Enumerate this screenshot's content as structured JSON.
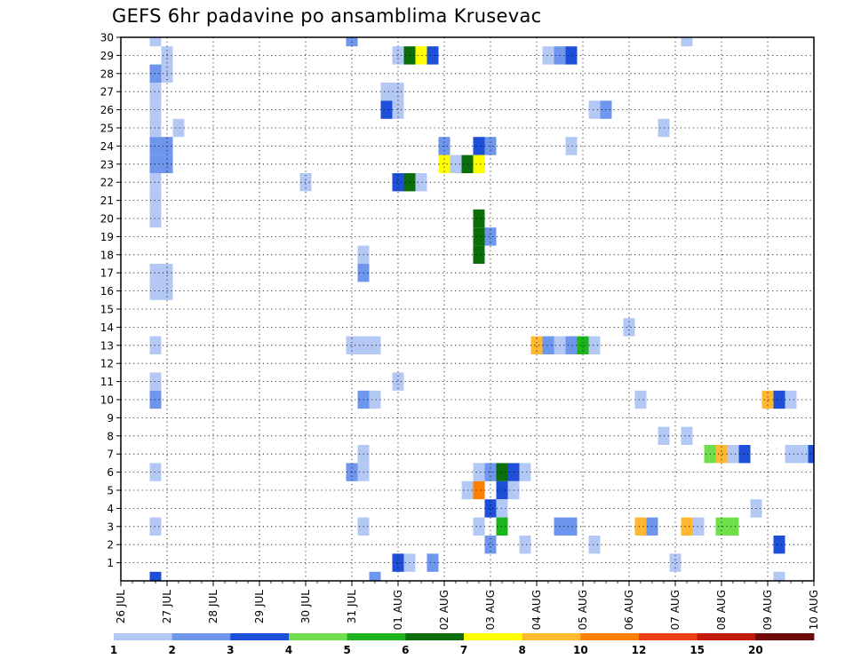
{
  "chart_data": {
    "type": "heatmap",
    "title": "GEFS 6hr padavine po ansamblima Krusevac",
    "xlabel": "",
    "ylabel": "",
    "x_ticks": [
      "26 JUL",
      "27 JUL",
      "28 JUL",
      "29 JUL",
      "30 JUL",
      "31 JUL",
      "01 AUG",
      "02 AUG",
      "03 AUG",
      "04 AUG",
      "05 AUG",
      "06 AUG",
      "07 AUG",
      "08 AUG",
      "09 AUG",
      "10 AUG"
    ],
    "y_ticks": [
      "1",
      "2",
      "3",
      "4",
      "5",
      "6",
      "7",
      "8",
      "9",
      "10",
      "11",
      "12",
      "13",
      "14",
      "15",
      "16",
      "17",
      "18",
      "19",
      "20",
      "21",
      "22",
      "23",
      "24",
      "25",
      "26",
      "27",
      "28",
      "29",
      "30"
    ],
    "x_range_steps": [
      0,
      60
    ],
    "x_step_hours": 6,
    "y_range": [
      0,
      30
    ],
    "grid": true,
    "colorbar": {
      "ticks": [
        "1",
        "2",
        "3",
        "4",
        "5",
        "6",
        "7",
        "8",
        "10",
        "12",
        "15",
        "20"
      ],
      "colors": [
        "#b4c8f5",
        "#6e96ec",
        "#1e4fd8",
        "#6fe04c",
        "#1cb51c",
        "#0b6e0b",
        "#ffff00",
        "#ffb830",
        "#ff7f00",
        "#e84010",
        "#c01a0a",
        "#700a0a"
      ]
    },
    "cells": [
      [
        3,
        30,
        1
      ],
      [
        3,
        28,
        2
      ],
      [
        3,
        27,
        1
      ],
      [
        3,
        26,
        1
      ],
      [
        3,
        25,
        1
      ],
      [
        3,
        24,
        2
      ],
      [
        3,
        23,
        2
      ],
      [
        3,
        22,
        1
      ],
      [
        3,
        21,
        1
      ],
      [
        3,
        20,
        1
      ],
      [
        3,
        17,
        1
      ],
      [
        3,
        16,
        1
      ],
      [
        3,
        13,
        1
      ],
      [
        3,
        11,
        1
      ],
      [
        3,
        10,
        2
      ],
      [
        3,
        6,
        1
      ],
      [
        3,
        3,
        1
      ],
      [
        3,
        0,
        3
      ],
      [
        4,
        29,
        1
      ],
      [
        4,
        28,
        1
      ],
      [
        4,
        24,
        2
      ],
      [
        4,
        23,
        2
      ],
      [
        4,
        17,
        1
      ],
      [
        4,
        16,
        1
      ],
      [
        5,
        25,
        1
      ],
      [
        16,
        22,
        1
      ],
      [
        20,
        30,
        2
      ],
      [
        20,
        13,
        1
      ],
      [
        20,
        6,
        2
      ],
      [
        21,
        18,
        1
      ],
      [
        21,
        17,
        2
      ],
      [
        21,
        13,
        1
      ],
      [
        21,
        10,
        2
      ],
      [
        21,
        7,
        1
      ],
      [
        21,
        6,
        1
      ],
      [
        21,
        3,
        1
      ],
      [
        22,
        13,
        1
      ],
      [
        22,
        10,
        1
      ],
      [
        22,
        0,
        2
      ],
      [
        23,
        27,
        1
      ],
      [
        23,
        26,
        3
      ],
      [
        24,
        29,
        1
      ],
      [
        24,
        27,
        1
      ],
      [
        24,
        26,
        1
      ],
      [
        24,
        22,
        3
      ],
      [
        24,
        11,
        1
      ],
      [
        24,
        1,
        3
      ],
      [
        25,
        29,
        6
      ],
      [
        25,
        22,
        6
      ],
      [
        25,
        1,
        1
      ],
      [
        26,
        29,
        7
      ],
      [
        26,
        22,
        1
      ],
      [
        27,
        29,
        3
      ],
      [
        27,
        1,
        2
      ],
      [
        28,
        24,
        2
      ],
      [
        28,
        23,
        7
      ],
      [
        29,
        23,
        1
      ],
      [
        30,
        23,
        6
      ],
      [
        30,
        5,
        1
      ],
      [
        31,
        24,
        3
      ],
      [
        31,
        23,
        7
      ],
      [
        31,
        20,
        6
      ],
      [
        31,
        19,
        6
      ],
      [
        31,
        18,
        6
      ],
      [
        31,
        6,
        1
      ],
      [
        31,
        5,
        9
      ],
      [
        31,
        3,
        1
      ],
      [
        32,
        24,
        2
      ],
      [
        32,
        19,
        2
      ],
      [
        32,
        6,
        2
      ],
      [
        32,
        4,
        3
      ],
      [
        32,
        2,
        2
      ],
      [
        33,
        6,
        6
      ],
      [
        33,
        5,
        3
      ],
      [
        33,
        4,
        1
      ],
      [
        33,
        3,
        5
      ],
      [
        34,
        6,
        3
      ],
      [
        34,
        5,
        1
      ],
      [
        35,
        6,
        1
      ],
      [
        35,
        2,
        1
      ],
      [
        36,
        13,
        8
      ],
      [
        37,
        29,
        1
      ],
      [
        37,
        13,
        2
      ],
      [
        38,
        29,
        2
      ],
      [
        38,
        13,
        1
      ],
      [
        38,
        3,
        2
      ],
      [
        39,
        29,
        3
      ],
      [
        39,
        24,
        1
      ],
      [
        39,
        13,
        2
      ],
      [
        39,
        3,
        2
      ],
      [
        40,
        13,
        5
      ],
      [
        41,
        26,
        1
      ],
      [
        41,
        13,
        1
      ],
      [
        41,
        2,
        1
      ],
      [
        42,
        26,
        2
      ],
      [
        44,
        14,
        1
      ],
      [
        45,
        10,
        1
      ],
      [
        45,
        3,
        8
      ],
      [
        46,
        3,
        2
      ],
      [
        47,
        25,
        1
      ],
      [
        47,
        8,
        1
      ],
      [
        48,
        1,
        1
      ],
      [
        49,
        30,
        1
      ],
      [
        49,
        8,
        1
      ],
      [
        49,
        3,
        8
      ],
      [
        50,
        3,
        1
      ],
      [
        51,
        7,
        4
      ],
      [
        52,
        7,
        8
      ],
      [
        52,
        3,
        4
      ],
      [
        53,
        7,
        1
      ],
      [
        53,
        3,
        4
      ],
      [
        54,
        7,
        3
      ],
      [
        55,
        4,
        1
      ],
      [
        56,
        10,
        8
      ],
      [
        57,
        10,
        3
      ],
      [
        57,
        2,
        3
      ],
      [
        57,
        0,
        1
      ],
      [
        58,
        10,
        1
      ],
      [
        58,
        7,
        1
      ],
      [
        59,
        7,
        1
      ],
      [
        60,
        7,
        3
      ]
    ]
  }
}
